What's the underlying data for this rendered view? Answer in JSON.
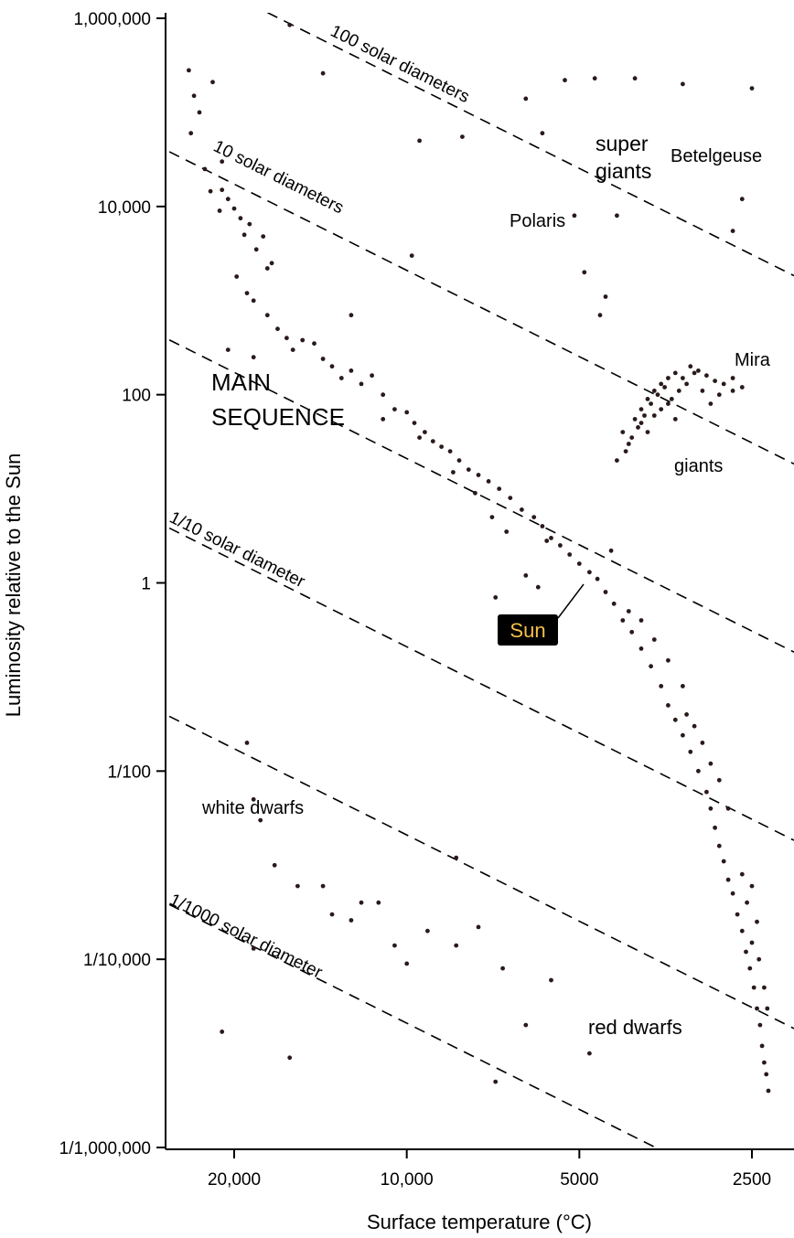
{
  "chart_data": {
    "type": "scatter",
    "title": "",
    "xlabel": "Surface temperature (°C)",
    "ylabel": "Luminosity relative to the Sun",
    "x_scale": "log-reversed",
    "y_scale": "log",
    "xlim": [
      26000,
      2200
    ],
    "ylim": [
      1e-06,
      1000000
    ],
    "x_ticks": [
      {
        "value": 20000,
        "label": "20,000"
      },
      {
        "value": 10000,
        "label": "10,000"
      },
      {
        "value": 5000,
        "label": "5000"
      },
      {
        "value": 2500,
        "label": "2500"
      }
    ],
    "y_ticks": [
      {
        "value": 1000000,
        "label": "1,000,000"
      },
      {
        "value": 10000,
        "label": "10,000"
      },
      {
        "value": 100,
        "label": "100"
      },
      {
        "value": 1,
        "label": "1"
      },
      {
        "value": 0.01,
        "label": "1/100"
      },
      {
        "value": 0.0001,
        "label": "1/10,000"
      },
      {
        "value": 1e-06,
        "label": "1/1,000,000"
      }
    ],
    "diameter_lines": [
      {
        "diameter": 100,
        "label": "100 solar diameters"
      },
      {
        "diameter": 10,
        "label": "10 solar diameters"
      },
      {
        "diameter": 1,
        "label": ""
      },
      {
        "diameter": 0.1,
        "label": "1/10 solar diameter"
      },
      {
        "diameter": 0.01,
        "label": ""
      },
      {
        "diameter": 0.001,
        "label": "1/1000 solar diameter"
      }
    ],
    "annotations": [
      {
        "text": "super",
        "color": "#9b30b8"
      },
      {
        "text": "giants",
        "color": "#9b30b8"
      },
      {
        "text": "Betelgeuse",
        "color": "#000000"
      },
      {
        "text": "Polaris",
        "color": "#000000"
      },
      {
        "text": "Mira",
        "color": "#000000"
      },
      {
        "text": "giants",
        "color": "#000000"
      },
      {
        "text": "MAIN",
        "color": "#000000"
      },
      {
        "text": "SEQUENCE",
        "color": "#000000"
      },
      {
        "text": "white dwarfs",
        "color": "#000000"
      },
      {
        "text": "red dwarfs",
        "color": "#a0322a"
      }
    ],
    "sun_label": "Sun",
    "sun_label_color": "#f5c04a",
    "sun_label_bg": "#000000",
    "point_color": "#2a1a1a",
    "grid": false,
    "legend": "none",
    "points": [
      [
        24000,
        280000
      ],
      [
        23500,
        150000
      ],
      [
        23000,
        100000
      ],
      [
        22500,
        25000
      ],
      [
        23800,
        60000
      ],
      [
        22000,
        14500
      ],
      [
        21000,
        15000
      ],
      [
        21800,
        210000
      ],
      [
        21200,
        9000
      ],
      [
        20500,
        12000
      ],
      [
        20000,
        9500
      ],
      [
        19500,
        7500
      ],
      [
        19200,
        5000
      ],
      [
        18800,
        6500
      ],
      [
        18300,
        3500
      ],
      [
        17800,
        4800
      ],
      [
        17500,
        2200
      ],
      [
        17200,
        2500
      ],
      [
        19800,
        1800
      ],
      [
        19000,
        1200
      ],
      [
        18500,
        1000
      ],
      [
        17500,
        700
      ],
      [
        16800,
        500
      ],
      [
        16200,
        400
      ],
      [
        15800,
        300
      ],
      [
        15200,
        380
      ],
      [
        14500,
        350
      ],
      [
        14000,
        240
      ],
      [
        13500,
        200
      ],
      [
        13000,
        150
      ],
      [
        12500,
        180
      ],
      [
        12000,
        130
      ],
      [
        11500,
        160
      ],
      [
        11000,
        100
      ],
      [
        10500,
        70
      ],
      [
        10000,
        65
      ],
      [
        9700,
        50
      ],
      [
        9300,
        40
      ],
      [
        9000,
        32
      ],
      [
        8700,
        28
      ],
      [
        8400,
        25
      ],
      [
        8100,
        20
      ],
      [
        7800,
        16
      ],
      [
        7500,
        14
      ],
      [
        7200,
        12
      ],
      [
        6900,
        10
      ],
      [
        6600,
        8
      ],
      [
        6300,
        6
      ],
      [
        6000,
        5
      ],
      [
        5800,
        4
      ],
      [
        5600,
        3
      ],
      [
        5400,
        2.5
      ],
      [
        5200,
        2
      ],
      [
        5000,
        1.6
      ],
      [
        4800,
        1.3
      ],
      [
        4650,
        1.1
      ],
      [
        4500,
        0.8
      ],
      [
        4350,
        0.6
      ],
      [
        4200,
        0.4
      ],
      [
        4050,
        0.3
      ],
      [
        3900,
        0.2
      ],
      [
        3750,
        0.13
      ],
      [
        3600,
        0.08
      ],
      [
        3500,
        0.05
      ],
      [
        3400,
        0.035
      ],
      [
        3300,
        0.024
      ],
      [
        3200,
        0.016
      ],
      [
        3100,
        0.01
      ],
      [
        3000,
        0.006
      ],
      [
        2950,
        0.004
      ],
      [
        2900,
        0.0025
      ],
      [
        2850,
        0.0016
      ],
      [
        2800,
        0.0011
      ],
      [
        2750,
        0.0007
      ],
      [
        2700,
        0.0005
      ],
      [
        2650,
        0.0003
      ],
      [
        2600,
        0.0002
      ],
      [
        2560,
        0.00012
      ],
      [
        2520,
        8e-05
      ],
      [
        2480,
        5e-05
      ],
      [
        2450,
        3e-05
      ],
      [
        2420,
        2e-05
      ],
      [
        2400,
        1.2e-05
      ],
      [
        2380,
        8e-06
      ],
      [
        2360,
        6e-06
      ],
      [
        2340,
        4e-06
      ],
      [
        2600,
        0.0008
      ],
      [
        2550,
        0.0004
      ],
      [
        2500,
        0.0006
      ],
      [
        2450,
        0.00025
      ],
      [
        2500,
        0.00015
      ],
      [
        2430,
        0.0001
      ],
      [
        2380,
        5e-05
      ],
      [
        2350,
        3e-05
      ],
      [
        6200,
        1.2
      ],
      [
        5900,
        0.9
      ],
      [
        5700,
        2.8
      ],
      [
        6700,
        3.5
      ],
      [
        7100,
        5
      ],
      [
        7600,
        9
      ],
      [
        8300,
        15
      ],
      [
        9500,
        35
      ],
      [
        11000,
        55
      ],
      [
        4400,
        2.2
      ],
      [
        4100,
        0.5
      ],
      [
        3900,
        0.4
      ],
      [
        3700,
        0.25
      ],
      [
        3500,
        0.15
      ],
      [
        3300,
        0.08
      ],
      [
        3250,
        0.04
      ],
      [
        3150,
        0.03
      ],
      [
        3050,
        0.02
      ],
      [
        2950,
        0.012
      ],
      [
        2850,
        0.008
      ],
      [
        2750,
        0.004
      ],
      [
        4200,
        40
      ],
      [
        4000,
        55
      ],
      [
        3900,
        70
      ],
      [
        3800,
        90
      ],
      [
        3700,
        110
      ],
      [
        3600,
        130
      ],
      [
        3500,
        150
      ],
      [
        3400,
        170
      ],
      [
        3300,
        150
      ],
      [
        3200,
        200
      ],
      [
        3100,
        180
      ],
      [
        3000,
        160
      ],
      [
        2900,
        140
      ],
      [
        2800,
        130
      ],
      [
        2700,
        150
      ],
      [
        2600,
        120
      ],
      [
        4100,
        30
      ],
      [
        3950,
        45
      ],
      [
        3850,
        60
      ],
      [
        3750,
        80
      ],
      [
        3650,
        100
      ],
      [
        3550,
        120
      ],
      [
        3450,
        90
      ],
      [
        3350,
        110
      ],
      [
        3250,
        130
      ],
      [
        3150,
        170
      ],
      [
        3050,
        110
      ],
      [
        2950,
        80
      ],
      [
        2850,
        100
      ],
      [
        4300,
        20
      ],
      [
        4150,
        25
      ],
      [
        4050,
        35
      ],
      [
        3900,
        50
      ],
      [
        3800,
        40
      ],
      [
        3700,
        60
      ],
      [
        3600,
        70
      ],
      [
        3500,
        80
      ],
      [
        3400,
        55
      ],
      [
        2700,
        110
      ],
      [
        16000,
        850000
      ],
      [
        14000,
        260000
      ],
      [
        9500,
        50000
      ],
      [
        8000,
        55000
      ],
      [
        6200,
        140000
      ],
      [
        5800,
        60000
      ],
      [
        5300,
        220000
      ],
      [
        4700,
        230000
      ],
      [
        4000,
        230000
      ],
      [
        3300,
        200000
      ],
      [
        2500,
        180000
      ],
      [
        2600,
        12000
      ],
      [
        2700,
        5500
      ],
      [
        4900,
        2000
      ],
      [
        4600,
        700
      ],
      [
        4500,
        1100
      ],
      [
        4300,
        8000
      ],
      [
        5100,
        8000
      ],
      [
        9800,
        3000
      ],
      [
        12500,
        700
      ],
      [
        21000,
        30000
      ],
      [
        20500,
        300
      ],
      [
        18500,
        250
      ],
      [
        19000,
        0.02
      ],
      [
        18500,
        0.005
      ],
      [
        18000,
        0.003
      ],
      [
        17000,
        0.001
      ],
      [
        15500,
        0.0006
      ],
      [
        14000,
        0.0006
      ],
      [
        13500,
        0.0003
      ],
      [
        12500,
        0.00026
      ],
      [
        12000,
        0.0004
      ],
      [
        11200,
        0.0004
      ],
      [
        10500,
        0.00014
      ],
      [
        10000,
        9e-05
      ],
      [
        9200,
        0.0002
      ],
      [
        8200,
        0.00014
      ],
      [
        7500,
        0.00022
      ],
      [
        6800,
        8e-05
      ],
      [
        6200,
        2e-05
      ],
      [
        7000,
        5e-06
      ],
      [
        5600,
        6e-05
      ],
      [
        4800,
        1e-05
      ],
      [
        8200,
        0.0012
      ],
      [
        7000,
        0.7
      ],
      [
        21000,
        1.7e-05
      ],
      [
        18500,
        0.00013
      ],
      [
        16000,
        9e-06
      ]
    ]
  }
}
